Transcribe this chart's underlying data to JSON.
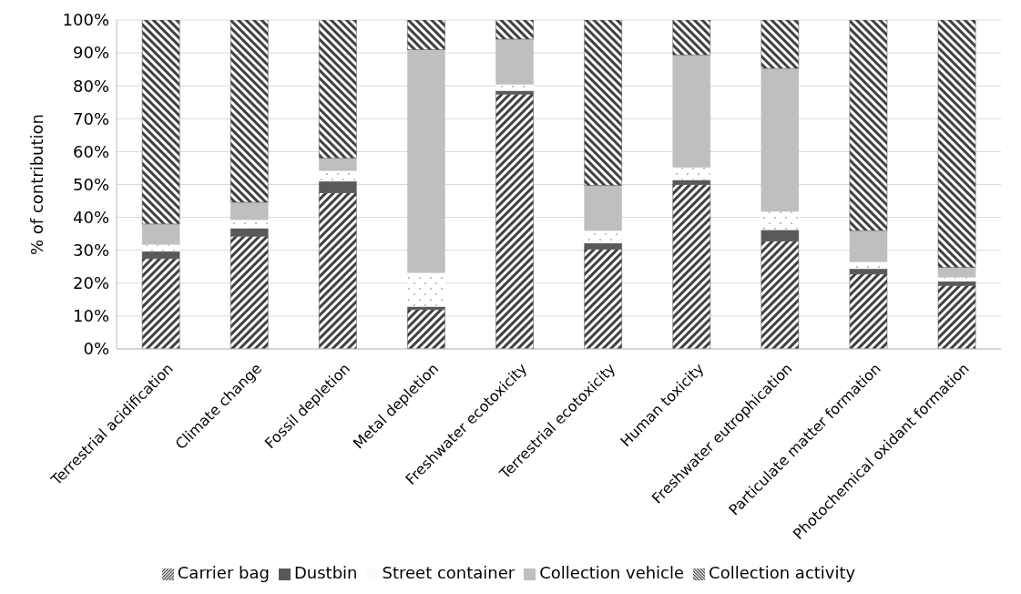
{
  "chart_data": {
    "type": "bar",
    "stacked": true,
    "ylabel": "% of contribution",
    "categories": [
      "Terrestrial acidification",
      "Climate change",
      "Fossil depletion",
      "Metal depletion",
      "Freshwater ecotoxicity",
      "Terrestrial ecotoxicity",
      "Human toxicity",
      "Freshwater eutrophication",
      "Particulate matter formation",
      "Photochemical oxidant formation"
    ],
    "series": [
      {
        "name": "Carrier bag",
        "color": "#404040",
        "values": [
          27.5,
          34.3,
          47.5,
          12,
          77.5,
          30.3,
          50,
          32.8,
          22.8,
          19.3
        ]
      },
      {
        "name": "Dustbin",
        "color": "#595959",
        "values": [
          2.2,
          2.4,
          3.5,
          0.9,
          1,
          1.9,
          1.4,
          3.4,
          1.6,
          1.3
        ]
      },
      {
        "name": "Street container",
        "color": "#ffffff",
        "values": [
          2.1,
          2.6,
          3.2,
          10.3,
          2,
          3.8,
          3.8,
          5.6,
          2.1,
          1.2
        ]
      },
      {
        "name": "Collection vehicle",
        "color": "#bfbfbf",
        "values": [
          6.2,
          5.3,
          3.8,
          67.8,
          13.7,
          13.7,
          34.2,
          43.5,
          9.5,
          3
        ]
      },
      {
        "name": "Collection activity",
        "color": "#404040",
        "values": [
          62,
          55.4,
          42,
          9,
          5.8,
          50.3,
          10.6,
          14.7,
          64,
          75.2
        ]
      }
    ],
    "ylim": [
      0,
      100
    ],
    "yticks": [
      {
        "value": 0,
        "label": "0%"
      },
      {
        "value": 10,
        "label": "10%"
      },
      {
        "value": 20,
        "label": "20%"
      },
      {
        "value": 30,
        "label": "30%"
      },
      {
        "value": 40,
        "label": "40%"
      },
      {
        "value": 50,
        "label": "50%"
      },
      {
        "value": 60,
        "label": "60%"
      },
      {
        "value": 70,
        "label": "70%"
      },
      {
        "value": 80,
        "label": "80%"
      },
      {
        "value": 90,
        "label": "90%"
      },
      {
        "value": 100,
        "label": "100%"
      }
    ],
    "grid": "y",
    "legend": "bottom"
  }
}
